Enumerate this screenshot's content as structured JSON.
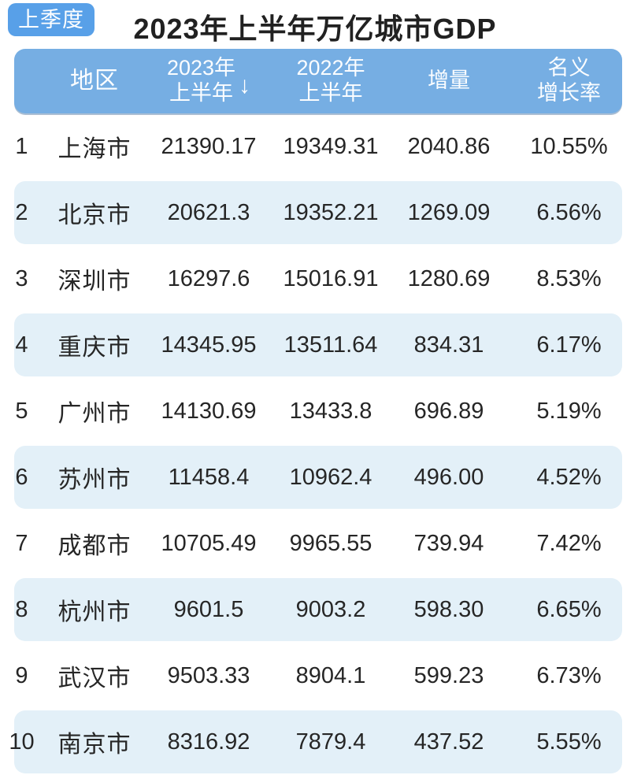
{
  "page": {
    "badge_label": "上季度",
    "title": "2023年上半年万亿城市GDP"
  },
  "colors": {
    "header_blue": "#76aee3",
    "badge_blue": "#58a0e8",
    "stripe_blue": "#e3f0f8",
    "text_dark": "#262626"
  },
  "table": {
    "header": {
      "region": "地区",
      "y2023_line1": "2023年",
      "y2023_line2": "上半年",
      "sort_icon": "↓",
      "y2022_line1": "2022年",
      "y2022_line2": "上半年",
      "increase": "增量",
      "growth_line1": "名义",
      "growth_line2": "增长率"
    },
    "rows": [
      {
        "rank": "1",
        "city": "上海市",
        "gdp2023": "21390.17",
        "gdp2022": "19349.31",
        "increase": "2040.86",
        "growth": "10.55%"
      },
      {
        "rank": "2",
        "city": "北京市",
        "gdp2023": "20621.3",
        "gdp2022": "19352.21",
        "increase": "1269.09",
        "growth": "6.56%"
      },
      {
        "rank": "3",
        "city": "深圳市",
        "gdp2023": "16297.6",
        "gdp2022": "15016.91",
        "increase": "1280.69",
        "growth": "8.53%"
      },
      {
        "rank": "4",
        "city": "重庆市",
        "gdp2023": "14345.95",
        "gdp2022": "13511.64",
        "increase": "834.31",
        "growth": "6.17%"
      },
      {
        "rank": "5",
        "city": "广州市",
        "gdp2023": "14130.69",
        "gdp2022": "13433.8",
        "increase": "696.89",
        "growth": "5.19%"
      },
      {
        "rank": "6",
        "city": "苏州市",
        "gdp2023": "11458.4",
        "gdp2022": "10962.4",
        "increase": "496.00",
        "growth": "4.52%"
      },
      {
        "rank": "7",
        "city": "成都市",
        "gdp2023": "10705.49",
        "gdp2022": "9965.55",
        "increase": "739.94",
        "growth": "7.42%"
      },
      {
        "rank": "8",
        "city": "杭州市",
        "gdp2023": "9601.5",
        "gdp2022": "9003.2",
        "increase": "598.30",
        "growth": "6.65%"
      },
      {
        "rank": "9",
        "city": "武汉市",
        "gdp2023": "9503.33",
        "gdp2022": "8904.1",
        "increase": "599.23",
        "growth": "6.73%"
      },
      {
        "rank": "10",
        "city": "南京市",
        "gdp2023": "8316.92",
        "gdp2022": "7879.4",
        "increase": "437.52",
        "growth": "5.55%"
      }
    ]
  },
  "chart_data": {
    "type": "table",
    "title": "2023年上半年万亿城市GDP",
    "badge": "上季度",
    "columns": [
      "地区",
      "2023年上半年",
      "2022年上半年",
      "增量",
      "名义增长率"
    ],
    "sorted_by": "2023年上半年 (descending)",
    "rows": [
      {
        "rank": 1,
        "region": "上海市",
        "gdp_2023_h1": 21390.17,
        "gdp_2022_h1": 19349.31,
        "increase": 2040.86,
        "nominal_growth_pct": 10.55
      },
      {
        "rank": 2,
        "region": "北京市",
        "gdp_2023_h1": 20621.3,
        "gdp_2022_h1": 19352.21,
        "increase": 1269.09,
        "nominal_growth_pct": 6.56
      },
      {
        "rank": 3,
        "region": "深圳市",
        "gdp_2023_h1": 16297.6,
        "gdp_2022_h1": 15016.91,
        "increase": 1280.69,
        "nominal_growth_pct": 8.53
      },
      {
        "rank": 4,
        "region": "重庆市",
        "gdp_2023_h1": 14345.95,
        "gdp_2022_h1": 13511.64,
        "increase": 834.31,
        "nominal_growth_pct": 6.17
      },
      {
        "rank": 5,
        "region": "广州市",
        "gdp_2023_h1": 14130.69,
        "gdp_2022_h1": 13433.8,
        "increase": 696.89,
        "nominal_growth_pct": 5.19
      },
      {
        "rank": 6,
        "region": "苏州市",
        "gdp_2023_h1": 11458.4,
        "gdp_2022_h1": 10962.4,
        "increase": 496.0,
        "nominal_growth_pct": 4.52
      },
      {
        "rank": 7,
        "region": "成都市",
        "gdp_2023_h1": 10705.49,
        "gdp_2022_h1": 9965.55,
        "increase": 739.94,
        "nominal_growth_pct": 7.42
      },
      {
        "rank": 8,
        "region": "杭州市",
        "gdp_2023_h1": 9601.5,
        "gdp_2022_h1": 9003.2,
        "increase": 598.3,
        "nominal_growth_pct": 6.65
      },
      {
        "rank": 9,
        "region": "武汉市",
        "gdp_2023_h1": 9503.33,
        "gdp_2022_h1": 8904.1,
        "increase": 599.23,
        "nominal_growth_pct": 6.73
      },
      {
        "rank": 10,
        "region": "南京市",
        "gdp_2023_h1": 8316.92,
        "gdp_2022_h1": 7879.4,
        "increase": 437.52,
        "nominal_growth_pct": 5.55
      }
    ]
  }
}
